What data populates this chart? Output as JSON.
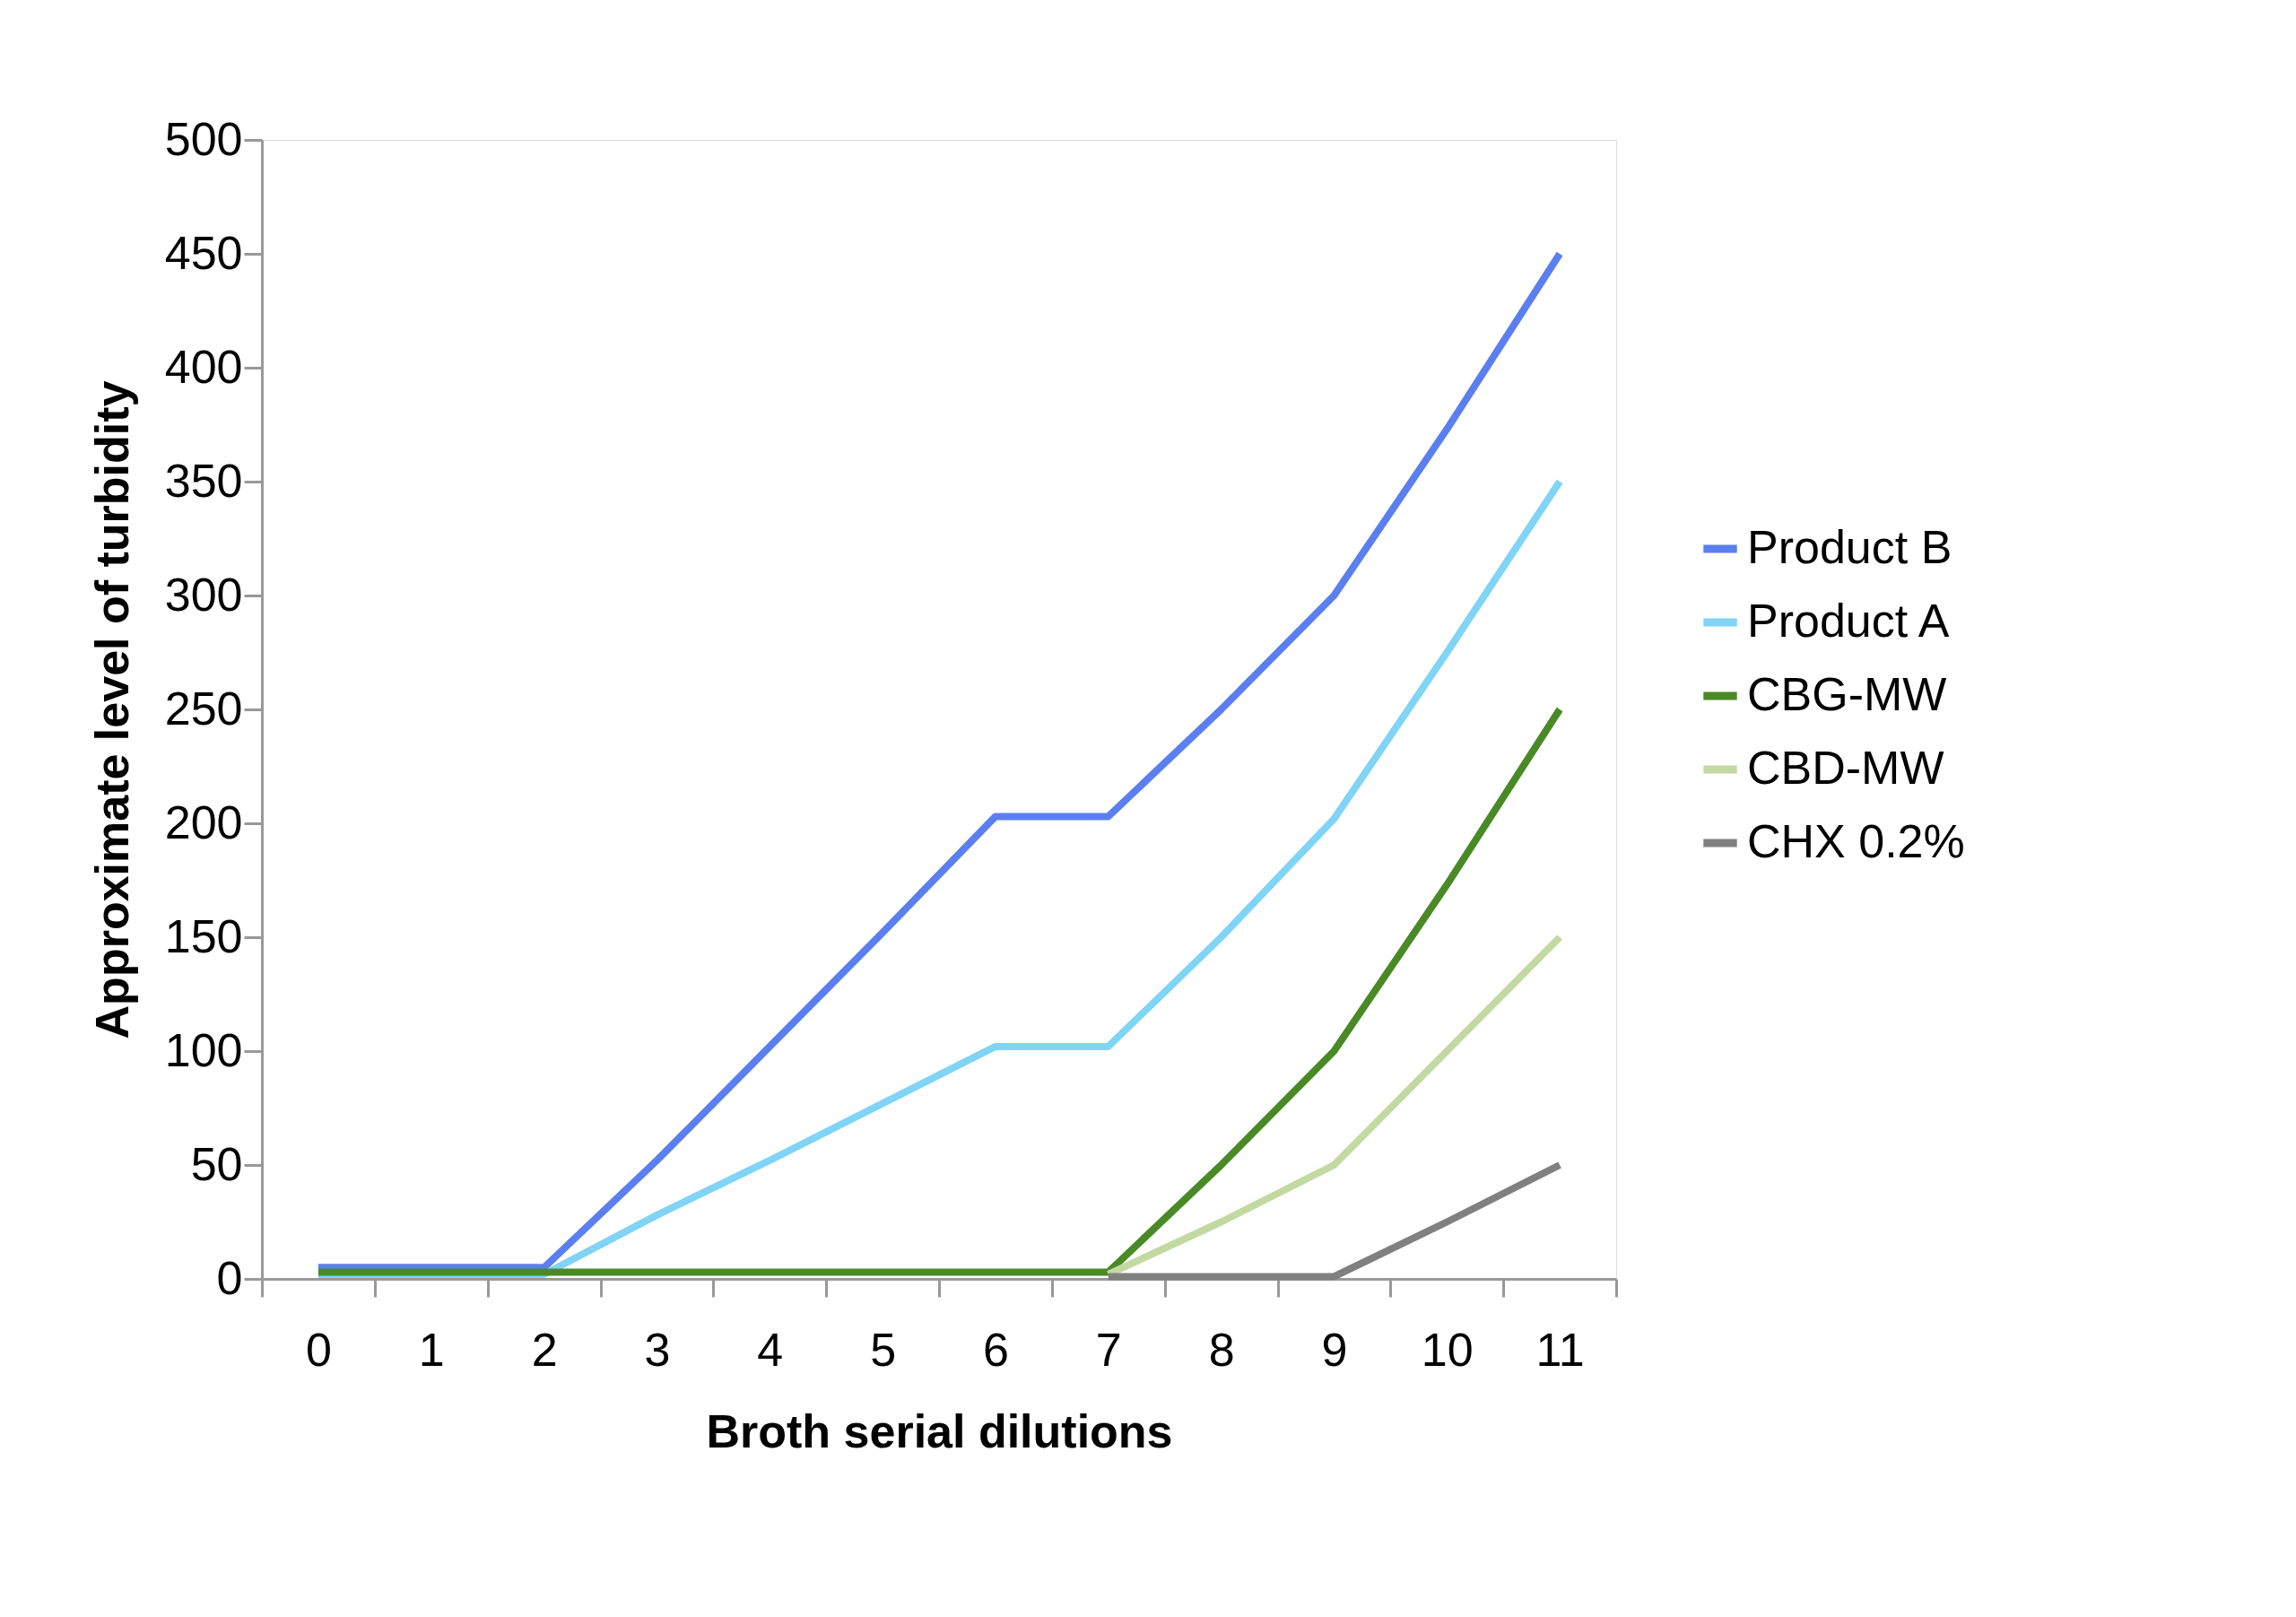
{
  "chart_data": {
    "type": "line",
    "xlabel": "Broth serial dilutions",
    "ylabel": "Approximate level of turbidity",
    "categories": [
      "0",
      "1",
      "2",
      "3",
      "4",
      "5",
      "6",
      "7",
      "8",
      "9",
      "10",
      "11"
    ],
    "ylim": [
      0,
      500
    ],
    "yticks": [
      0,
      50,
      100,
      150,
      200,
      250,
      300,
      350,
      400,
      450,
      500
    ],
    "grid": false,
    "legend": "right",
    "marker": "none",
    "line_style": "solid",
    "series": [
      {
        "name": "Product B",
        "color": "#5b7ff0",
        "values": [
          5,
          5,
          5,
          52,
          102,
          152,
          203,
          203,
          250,
          300,
          373,
          450
        ]
      },
      {
        "name": "Product A",
        "color": "#80d4f6",
        "values": [
          2,
          2,
          2,
          28,
          52,
          77,
          102,
          102,
          150,
          202,
          275,
          350
        ]
      },
      {
        "name": "CBG-MW",
        "color": "#4a8a26",
        "values": [
          3,
          3,
          3,
          3,
          3,
          3,
          3,
          3,
          50,
          100,
          173,
          250
        ]
      },
      {
        "name": "CBD-MW",
        "color": "#c3d9a2",
        "values": [
          null,
          null,
          null,
          null,
          null,
          null,
          null,
          2,
          25,
          50,
          100,
          150
        ]
      },
      {
        "name": "CHX 0.2%",
        "color": "#808080",
        "values": [
          null,
          null,
          null,
          null,
          null,
          null,
          null,
          1,
          1,
          1,
          25,
          50
        ]
      }
    ]
  }
}
